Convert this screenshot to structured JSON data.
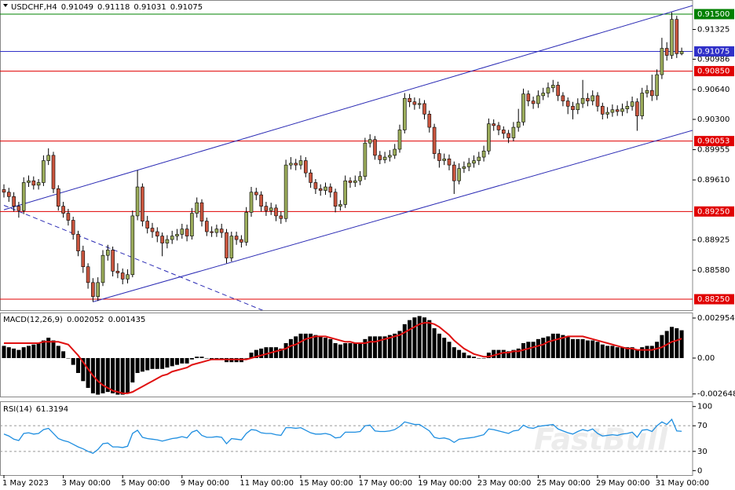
{
  "chart_data": [
    {
      "type": "candlestick",
      "title": "USDCHF,H4",
      "up_color": "#9aab5a",
      "down_color": "#c9553e",
      "open": [
        0.895,
        0.8947,
        0.8942,
        0.8931,
        0.8926,
        0.8958,
        0.896,
        0.8955,
        0.8958,
        0.8983,
        0.8989,
        0.8951,
        0.8931,
        0.8923,
        0.8915,
        0.8899,
        0.888,
        0.8862,
        0.8844,
        0.8828,
        0.8844,
        0.8875,
        0.8881,
        0.8857,
        0.8855,
        0.8848,
        0.8853,
        0.892,
        0.8953,
        0.8914,
        0.8906,
        0.8902,
        0.8897,
        0.8889,
        0.8893,
        0.8897,
        0.8899,
        0.8905,
        0.8897,
        0.8923,
        0.8935,
        0.8914,
        0.8902,
        0.8901,
        0.8905,
        0.8901,
        0.8872,
        0.8897,
        0.8893,
        0.889,
        0.8924,
        0.8947,
        0.8944,
        0.8931,
        0.8926,
        0.8929,
        0.892,
        0.8917,
        0.8978,
        0.898,
        0.8978,
        0.8983,
        0.8969,
        0.8958,
        0.8951,
        0.8949,
        0.8953,
        0.8947,
        0.8931,
        0.8933,
        0.896,
        0.8958,
        0.896,
        0.8965,
        0.9003,
        0.9007,
        0.8989,
        0.8984,
        0.8987,
        0.8989,
        0.8996,
        0.9018,
        0.9054,
        0.905,
        0.9047,
        0.9048,
        0.9036,
        0.9021,
        0.8991,
        0.8983,
        0.8985,
        0.8978,
        0.896,
        0.8974,
        0.8976,
        0.898,
        0.8983,
        0.8987,
        0.8994,
        0.9025,
        0.9023,
        0.9018,
        0.9014,
        0.9009,
        0.9021,
        0.9027,
        0.9059,
        0.9051,
        0.9048,
        0.9057,
        0.906,
        0.9066,
        0.9069,
        0.9057,
        0.9051,
        0.9045,
        0.9041,
        0.9048,
        0.9054,
        0.9051,
        0.9057,
        0.9045,
        0.9036,
        0.9038,
        0.9041,
        0.9039,
        0.9042,
        0.9045,
        0.905,
        0.9034,
        0.906,
        0.9063,
        0.9057,
        0.9081,
        0.9111,
        0.9103,
        0.9144,
        0.91049
      ],
      "high": [
        0.8956,
        0.8952,
        0.8947,
        0.8936,
        0.8964,
        0.8966,
        0.8965,
        0.8962,
        0.8989,
        0.8997,
        0.8993,
        0.8955,
        0.8936,
        0.8928,
        0.8919,
        0.8903,
        0.8886,
        0.8866,
        0.8849,
        0.885,
        0.8881,
        0.8887,
        0.8885,
        0.8866,
        0.886,
        0.8859,
        0.8926,
        0.8972,
        0.8957,
        0.892,
        0.8912,
        0.8907,
        0.8901,
        0.8898,
        0.8903,
        0.8905,
        0.8911,
        0.891,
        0.8929,
        0.8941,
        0.8939,
        0.8918,
        0.8908,
        0.891,
        0.8911,
        0.8905,
        0.8902,
        0.8902,
        0.8898,
        0.893,
        0.8953,
        0.8952,
        0.8948,
        0.8936,
        0.8935,
        0.8933,
        0.8925,
        0.8984,
        0.8987,
        0.8985,
        0.8989,
        0.8987,
        0.8973,
        0.8962,
        0.8956,
        0.8958,
        0.8957,
        0.8951,
        0.8938,
        0.8966,
        0.8964,
        0.8966,
        0.8971,
        0.9009,
        0.9013,
        0.9011,
        0.8994,
        0.8993,
        0.8995,
        0.9002,
        0.9024,
        0.906,
        0.9059,
        0.9055,
        0.9054,
        0.9052,
        0.904,
        0.9025,
        0.8996,
        0.8991,
        0.899,
        0.8982,
        0.898,
        0.8982,
        0.8986,
        0.8989,
        0.8993,
        0.9,
        0.9031,
        0.903,
        0.9027,
        0.9022,
        0.9018,
        0.9027,
        0.9042,
        0.9065,
        0.9063,
        0.9056,
        0.9063,
        0.9066,
        0.9072,
        0.9075,
        0.9073,
        0.9061,
        0.9055,
        0.905,
        0.9054,
        0.9075,
        0.906,
        0.9063,
        0.9061,
        0.9049,
        0.9044,
        0.9047,
        0.9046,
        0.9048,
        0.9051,
        0.9056,
        0.9054,
        0.9066,
        0.9069,
        0.9081,
        0.9087,
        0.9123,
        0.9118,
        0.9152,
        0.9148,
        0.91118
      ],
      "low": [
        0.8941,
        0.8936,
        0.8925,
        0.8918,
        0.8922,
        0.8953,
        0.895,
        0.895,
        0.8954,
        0.8978,
        0.8946,
        0.8926,
        0.8918,
        0.8909,
        0.8893,
        0.8874,
        0.8855,
        0.8837,
        0.8822,
        0.8823,
        0.884,
        0.8869,
        0.8851,
        0.8849,
        0.8842,
        0.8843,
        0.885,
        0.8915,
        0.8908,
        0.89,
        0.8895,
        0.889,
        0.8874,
        0.8883,
        0.8888,
        0.8892,
        0.8894,
        0.8891,
        0.8893,
        0.8918,
        0.8908,
        0.8897,
        0.8896,
        0.8896,
        0.8895,
        0.8866,
        0.8868,
        0.8887,
        0.8884,
        0.8886,
        0.8919,
        0.8938,
        0.8925,
        0.892,
        0.8921,
        0.8914,
        0.8911,
        0.8913,
        0.8973,
        0.8972,
        0.8973,
        0.8964,
        0.8952,
        0.8945,
        0.8943,
        0.8944,
        0.8941,
        0.8924,
        0.8926,
        0.8929,
        0.8952,
        0.8953,
        0.8955,
        0.8961,
        0.8998,
        0.8984,
        0.8979,
        0.898,
        0.8982,
        0.8985,
        0.8992,
        0.9014,
        0.9044,
        0.9041,
        0.9042,
        0.903,
        0.9015,
        0.8985,
        0.8975,
        0.8978,
        0.8972,
        0.8945,
        0.8956,
        0.8969,
        0.8971,
        0.8975,
        0.8978,
        0.8982,
        0.899,
        0.9017,
        0.9012,
        0.9008,
        0.9003,
        0.9005,
        0.9016,
        0.9023,
        0.9045,
        0.9042,
        0.9043,
        0.9052,
        0.9055,
        0.9061,
        0.9051,
        0.9045,
        0.9036,
        0.903,
        0.9036,
        0.9043,
        0.9045,
        0.9046,
        0.9039,
        0.903,
        0.9031,
        0.9033,
        0.9034,
        0.9034,
        0.9037,
        0.904,
        0.9017,
        0.903,
        0.9055,
        0.9051,
        0.9052,
        0.9076,
        0.9097,
        0.9099,
        0.91,
        0.91031
      ],
      "close": [
        0.8947,
        0.8942,
        0.8931,
        0.8926,
        0.8958,
        0.896,
        0.8955,
        0.8958,
        0.8983,
        0.8989,
        0.8951,
        0.8931,
        0.8923,
        0.8915,
        0.8899,
        0.888,
        0.8862,
        0.8844,
        0.8828,
        0.8844,
        0.8875,
        0.8881,
        0.8857,
        0.8855,
        0.8848,
        0.8853,
        0.892,
        0.8953,
        0.8914,
        0.8906,
        0.8902,
        0.8897,
        0.8889,
        0.8893,
        0.8897,
        0.8899,
        0.8905,
        0.8897,
        0.8923,
        0.8935,
        0.8914,
        0.8902,
        0.8901,
        0.8905,
        0.8901,
        0.8872,
        0.8897,
        0.8893,
        0.889,
        0.8924,
        0.8947,
        0.8944,
        0.8931,
        0.8926,
        0.8929,
        0.892,
        0.8917,
        0.8978,
        0.898,
        0.8978,
        0.8983,
        0.8969,
        0.8958,
        0.8951,
        0.8949,
        0.8953,
        0.8947,
        0.8931,
        0.8933,
        0.896,
        0.8958,
        0.896,
        0.8965,
        0.9003,
        0.9007,
        0.8989,
        0.8984,
        0.8987,
        0.8989,
        0.8996,
        0.9018,
        0.9054,
        0.905,
        0.9047,
        0.9048,
        0.9036,
        0.9021,
        0.8991,
        0.8983,
        0.8985,
        0.8978,
        0.896,
        0.8974,
        0.8976,
        0.898,
        0.8983,
        0.8987,
        0.8994,
        0.9025,
        0.9023,
        0.9018,
        0.9014,
        0.9009,
        0.9021,
        0.9027,
        0.9059,
        0.9051,
        0.9048,
        0.9057,
        0.906,
        0.9066,
        0.9069,
        0.9057,
        0.9051,
        0.9045,
        0.9041,
        0.9048,
        0.9054,
        0.9051,
        0.9057,
        0.9045,
        0.9036,
        0.9038,
        0.9041,
        0.9039,
        0.9042,
        0.9045,
        0.905,
        0.9034,
        0.906,
        0.9063,
        0.9057,
        0.9081,
        0.9111,
        0.9103,
        0.9144,
        0.91049,
        0.91075
      ],
      "ylim": [
        0.88125,
        0.91661
      ],
      "yticks": [
        {
          "value": 0.91325,
          "label": "0.91325"
        },
        {
          "value": 0.90986,
          "label": "0.90986"
        },
        {
          "value": 0.9064,
          "label": "0.90640"
        },
        {
          "value": 0.903,
          "label": "0.90300"
        },
        {
          "value": 0.89955,
          "label": "0.89955"
        },
        {
          "value": 0.8961,
          "label": "0.89610"
        },
        {
          "value": 0.88925,
          "label": "0.88925"
        },
        {
          "value": 0.8858,
          "label": "0.88580"
        }
      ],
      "levels": [
        {
          "value": 0.915,
          "label": "0.91500",
          "color": "#008000"
        },
        {
          "value": 0.91075,
          "color": "#3030c8"
        },
        {
          "value": 0.9085,
          "label": "0.90850",
          "color": "#e00000"
        },
        {
          "value": 0.90053,
          "color": "#e00000"
        },
        {
          "value": 0.8925,
          "label": "0.89250",
          "color": "#e00000"
        },
        {
          "value": 0.8825,
          "label": "0.88250",
          "color": "#e00000"
        }
      ],
      "trendlines": [
        {
          "x": [
            0,
            137
          ],
          "y": [
            0.8927,
            0.9156
          ],
          "color": "#2a2ab4",
          "dash": false
        },
        {
          "x": [
            18,
            137
          ],
          "y": [
            0.8822,
            0.9014
          ],
          "color": "#2a2ab4",
          "dash": false
        },
        {
          "x": [
            0,
            52
          ],
          "y": [
            0.8932,
            0.8813
          ],
          "color": "#2a2ab4",
          "dash": true
        }
      ],
      "xticks": [
        {
          "value": 0,
          "label": "1 May 2023"
        },
        {
          "value": 12,
          "label": "3 May 00:00"
        },
        {
          "value": 24,
          "label": "5 May 00:00"
        },
        {
          "value": 36,
          "label": "9 May 00:00"
        },
        {
          "value": 48,
          "label": "11 May 00:00"
        },
        {
          "value": 60,
          "label": "15 May 00:00"
        },
        {
          "value": 72,
          "label": "17 May 00:00"
        },
        {
          "value": 84,
          "label": "19 May 00:00"
        },
        {
          "value": 96,
          "label": "23 May 00:00"
        },
        {
          "value": 108,
          "label": "25 May 00:00"
        },
        {
          "value": 120,
          "label": "29 May 00:00"
        },
        {
          "value": 132,
          "label": "31 May 00:00"
        }
      ]
    },
    {
      "type": "macd",
      "title": "MACD(12,26,9)",
      "color": "#000000",
      "signal_color": "#e01010",
      "values": [
        0.0009,
        0.0008,
        0.0007,
        0.0006,
        0.0008,
        0.0009,
        0.001,
        0.0011,
        0.0013,
        0.0015,
        0.0013,
        0.0009,
        0.0005,
        0.0,
        -0.0005,
        -0.0011,
        -0.0017,
        -0.0022,
        -0.0026,
        -0.0027,
        -0.0026,
        -0.0025,
        -0.0026,
        -0.0027,
        -0.0027,
        -0.0026,
        -0.0018,
        -0.0011,
        -0.001,
        -0.0009,
        -0.0008,
        -0.0008,
        -0.0008,
        -0.0007,
        -0.0006,
        -0.0005,
        -0.0004,
        -0.0004,
        -0.0001,
        0.0001,
        0.0001,
        0.0,
        -0.0001,
        -0.0001,
        -0.0001,
        -0.0003,
        -0.0003,
        -0.0003,
        -0.0003,
        0.0,
        0.0004,
        0.0006,
        0.0007,
        0.0008,
        0.0008,
        0.0008,
        0.0007,
        0.0011,
        0.0014,
        0.0016,
        0.0018,
        0.0018,
        0.0018,
        0.0017,
        0.0016,
        0.0015,
        0.0014,
        0.0011,
        0.001,
        0.0011,
        0.0011,
        0.0011,
        0.0011,
        0.0014,
        0.0016,
        0.0016,
        0.0016,
        0.0016,
        0.0017,
        0.0018,
        0.002,
        0.0025,
        0.0028,
        0.003,
        0.0031,
        0.003,
        0.0028,
        0.0022,
        0.0018,
        0.0015,
        0.0012,
        0.0008,
        0.0006,
        0.0004,
        0.0002,
        0.0001,
        0.0,
        0.0,
        0.0004,
        0.0006,
        0.0006,
        0.0006,
        0.0005,
        0.0006,
        0.0007,
        0.0011,
        0.0012,
        0.0012,
        0.0014,
        0.0015,
        0.0016,
        0.0018,
        0.0018,
        0.0017,
        0.0016,
        0.0014,
        0.0014,
        0.0014,
        0.0013,
        0.0013,
        0.0012,
        0.001,
        0.0009,
        0.0009,
        0.0008,
        0.0008,
        0.0008,
        0.0008,
        0.0006,
        0.0008,
        0.0009,
        0.0009,
        0.0012,
        0.0017,
        0.002,
        0.0023,
        0.0022,
        0.002052
      ],
      "signal": [
        0.0011,
        0.0011,
        0.0011,
        0.0011,
        0.0011,
        0.0011,
        0.0011,
        0.0011,
        0.0012,
        0.0012,
        0.0012,
        0.0012,
        0.0011,
        0.001,
        0.0006,
        0.0002,
        -0.0003,
        -0.0008,
        -0.0013,
        -0.0017,
        -0.002,
        -0.0022,
        -0.0024,
        -0.0025,
        -0.0026,
        -0.0026,
        -0.0025,
        -0.0023,
        -0.0021,
        -0.0019,
        -0.0017,
        -0.0015,
        -0.0013,
        -0.0012,
        -0.001,
        -0.0009,
        -0.0008,
        -0.0007,
        -0.0005,
        -0.0004,
        -0.0003,
        -0.0002,
        -0.0001,
        -0.0001,
        -0.0001,
        -0.0001,
        -0.0001,
        -0.0001,
        -0.0001,
        -0.0001,
        0.0,
        0.0001,
        0.0002,
        0.0003,
        0.0004,
        0.0005,
        0.0006,
        0.0007,
        0.0009,
        0.001,
        0.0012,
        0.0014,
        0.0015,
        0.0016,
        0.0016,
        0.0016,
        0.0015,
        0.0014,
        0.0013,
        0.0012,
        0.0012,
        0.0011,
        0.0011,
        0.0011,
        0.0012,
        0.0012,
        0.0013,
        0.0014,
        0.0015,
        0.0016,
        0.0017,
        0.0019,
        0.0021,
        0.0023,
        0.0025,
        0.0026,
        0.0026,
        0.0025,
        0.0023,
        0.002,
        0.0017,
        0.0013,
        0.001,
        0.0007,
        0.0005,
        0.0003,
        0.0002,
        0.0001,
        0.0001,
        0.0002,
        0.0003,
        0.0004,
        0.0004,
        0.0005,
        0.0005,
        0.0006,
        0.0007,
        0.0008,
        0.0009,
        0.001,
        0.0012,
        0.0013,
        0.0014,
        0.0015,
        0.0016,
        0.0016,
        0.0016,
        0.0016,
        0.0015,
        0.0014,
        0.0013,
        0.0012,
        0.0011,
        0.001,
        0.0009,
        0.0008,
        0.0007,
        0.0007,
        0.0006,
        0.0006,
        0.0006,
        0.0006,
        0.0007,
        0.0008,
        0.001,
        0.0012,
        0.0013,
        0.001435
      ],
      "ylim": [
        -0.00284,
        0.00336
      ],
      "yticks": [
        0.002954,
        {
          "value": 0,
          "label": "0.00"
        },
        -0.002648
      ]
    },
    {
      "type": "line",
      "title": "RSI(14)",
      "color": "#1e8ee0",
      "watermark": "FastBull",
      "values": [
        57,
        54,
        49,
        47,
        58,
        59,
        57,
        58,
        64,
        66,
        58,
        50,
        47,
        45,
        41,
        37,
        34,
        30,
        27,
        33,
        42,
        43,
        37,
        37,
        36,
        38,
        58,
        63,
        52,
        50,
        49,
        48,
        46,
        48,
        50,
        51,
        53,
        51,
        60,
        63,
        55,
        52,
        52,
        53,
        52,
        42,
        50,
        49,
        48,
        58,
        64,
        63,
        59,
        58,
        58,
        56,
        55,
        67,
        67,
        66,
        67,
        63,
        59,
        57,
        57,
        58,
        56,
        51,
        52,
        60,
        60,
        60,
        61,
        70,
        71,
        62,
        61,
        61,
        62,
        64,
        69,
        76,
        74,
        72,
        72,
        67,
        62,
        52,
        50,
        51,
        49,
        44,
        49,
        50,
        51,
        52,
        54,
        56,
        65,
        64,
        62,
        60,
        58,
        62,
        63,
        71,
        67,
        66,
        69,
        70,
        71,
        72,
        65,
        62,
        59,
        57,
        61,
        64,
        62,
        65,
        58,
        54,
        55,
        56,
        55,
        57,
        58,
        60,
        52,
        63,
        64,
        61,
        70,
        76,
        72,
        80,
        62,
        61.3194
      ],
      "levels": [
        70,
        30
      ],
      "ylim": [
        -7,
        107
      ],
      "yticks": [
        100,
        70,
        30,
        0
      ]
    }
  ]
}
